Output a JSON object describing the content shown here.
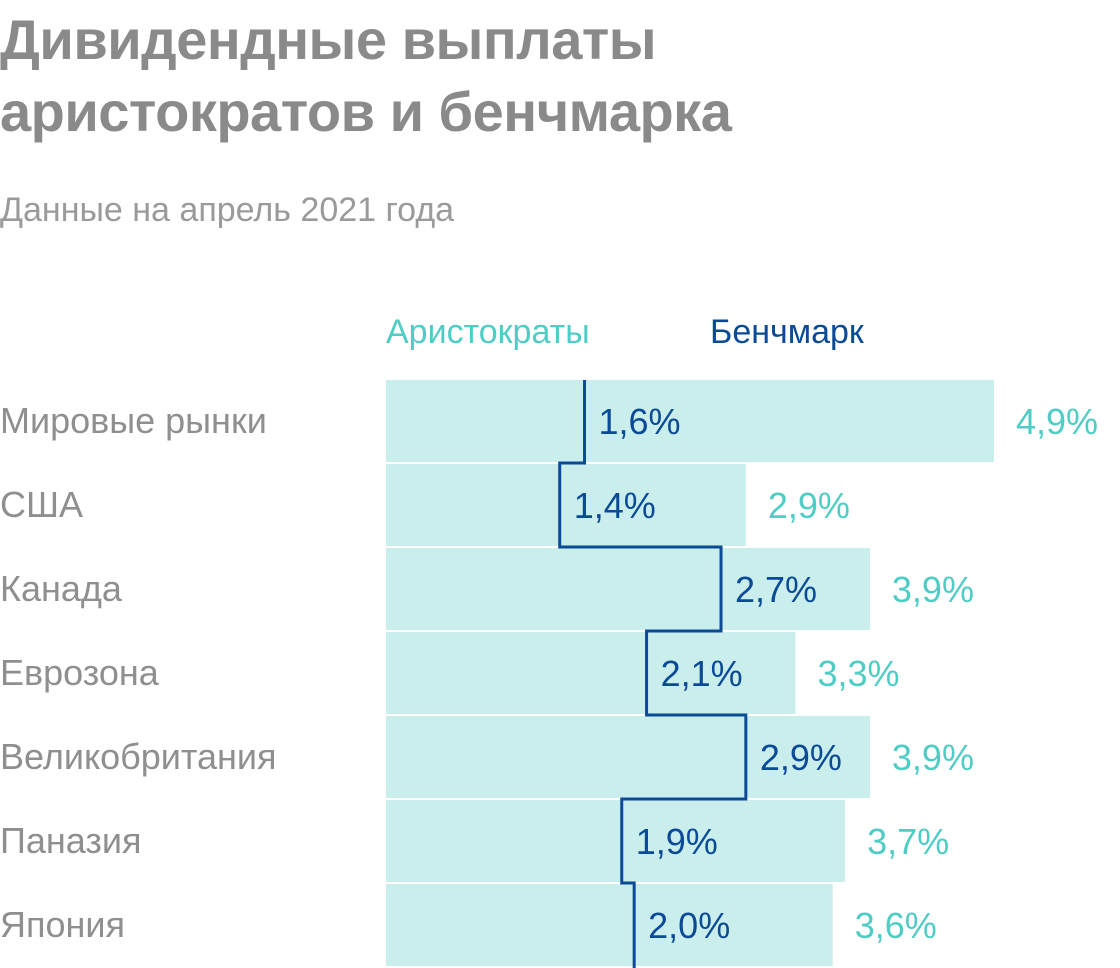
{
  "title_line1": "Дивидендные выплаты",
  "title_line2": "аристократов и бенчмарка",
  "subtitle": "Данные на апрель 2021 года",
  "colors": {
    "aristocrats_bar": "#c9eeeb",
    "aristocrats_text": "#4ecdc4",
    "benchmark": "#0b4a96",
    "label": "#8f8f8f"
  },
  "chart_data": {
    "type": "bar",
    "orientation": "horizontal",
    "title": "Дивидендные выплаты аристократов и бенчмарка",
    "subtitle": "Данные на апрель 2021 года",
    "categories": [
      "Мировые рынки",
      "США",
      "Канада",
      "Еврозона",
      "Великобритания",
      "Паназия",
      "Япония"
    ],
    "series": [
      {
        "name": "Аристократы",
        "values": [
          4.9,
          2.9,
          3.9,
          3.3,
          3.9,
          3.7,
          3.6
        ],
        "labels": [
          "4,9%",
          "2,9%",
          "3,9%",
          "3,3%",
          "3,9%",
          "3,7%",
          "3,6%"
        ]
      },
      {
        "name": "Бенчмарк",
        "values": [
          1.6,
          1.4,
          2.7,
          2.1,
          2.9,
          1.9,
          2.0
        ],
        "labels": [
          "1,6%",
          "1,4%",
          "2,7%",
          "2,1%",
          "2,9%",
          "1,9%",
          "2,0%"
        ]
      }
    ],
    "xlim": [
      0,
      4.9
    ],
    "legend": "top"
  }
}
